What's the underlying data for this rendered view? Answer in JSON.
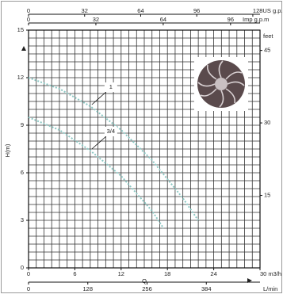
{
  "chart_data": {
    "type": "line",
    "xlabel": "Q",
    "ylabel": "H(m)",
    "xlim": [
      0,
      30
    ],
    "xticks": [
      0,
      6,
      12,
      18,
      24,
      {
        "value": 30,
        "label": "30 m3/h"
      }
    ],
    "ylim": [
      0,
      15
    ],
    "yticks": [
      0,
      3,
      6,
      9,
      12,
      15
    ],
    "grid": true,
    "top_axes": [
      {
        "unit": "US g.p.m",
        "lim": [
          0,
          132.1
        ],
        "ticks": [
          0,
          32,
          64,
          96,
          {
            "value": 128,
            "label": "128US g.p.m"
          }
        ]
      },
      {
        "unit": "Imp g.p.m",
        "label": "Imp g.p.m",
        "lim": [
          0,
          110
        ],
        "ticks": [
          0,
          32,
          64,
          96
        ]
      }
    ],
    "bottom_axis2": {
      "label": "L/min",
      "lim": [
        0,
        500
      ],
      "ticks": [
        0,
        128,
        256,
        384
      ]
    },
    "right_axis": {
      "label": "feet",
      "lim": [
        0,
        49.2
      ],
      "ticks": [
        15,
        30,
        45
      ]
    },
    "series": [
      {
        "name": "1",
        "color": "#8cc8c4",
        "x": [
          0,
          4,
          8,
          12,
          16,
          20,
          22
        ],
        "values": [
          12,
          11.3,
          10.2,
          8.7,
          6.8,
          4.4,
          3
        ]
      },
      {
        "name": "3/4",
        "color": "#8cc8c4",
        "x": [
          0,
          4,
          8,
          12,
          16,
          17.5
        ],
        "values": [
          9.5,
          8.7,
          7.4,
          5.8,
          3.6,
          2.5
        ]
      }
    ]
  }
}
